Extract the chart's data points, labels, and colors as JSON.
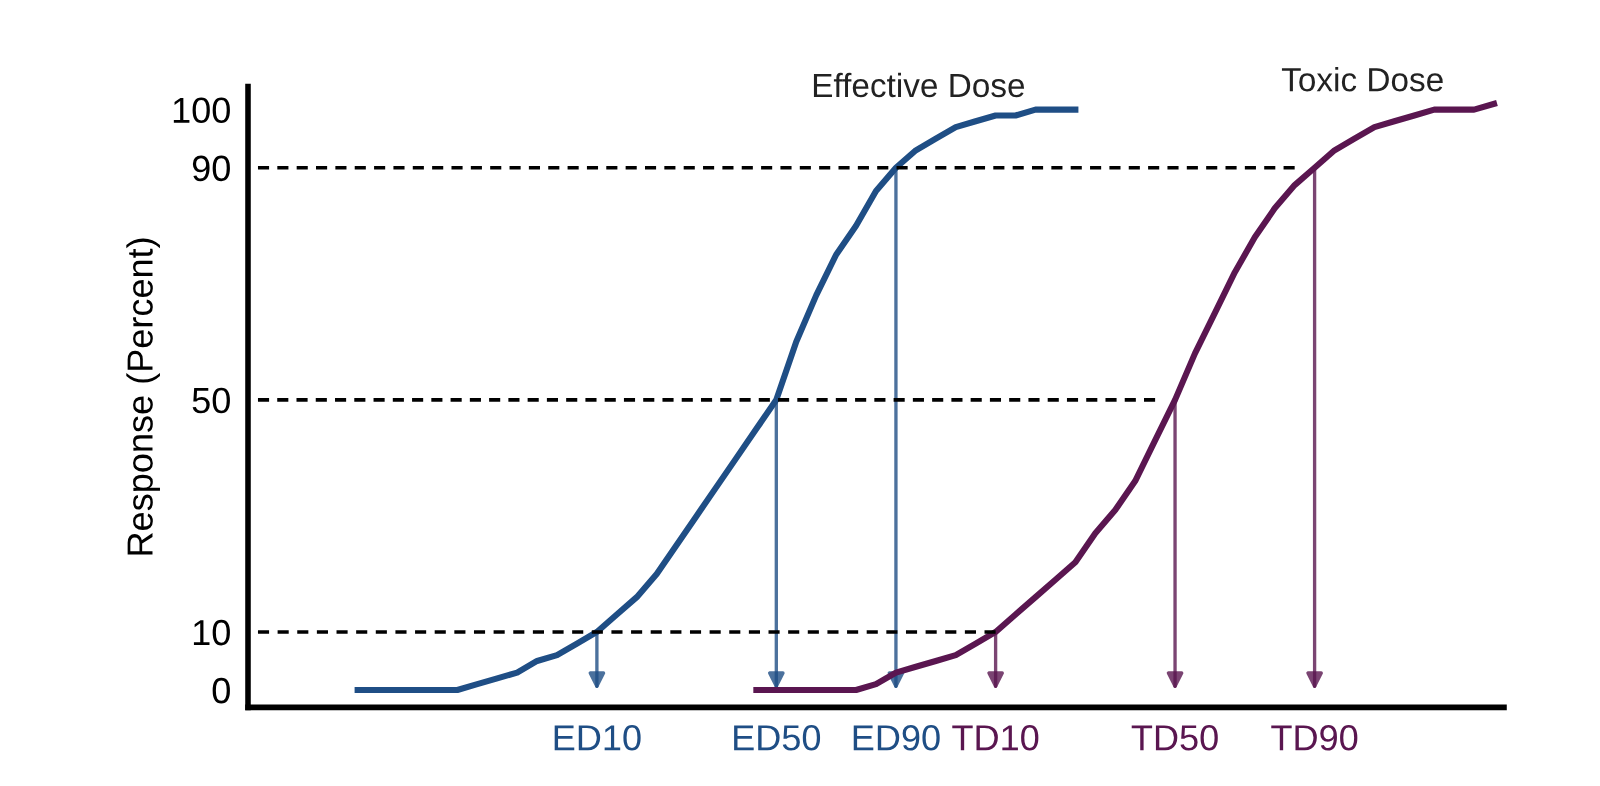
{
  "chart_data": {
    "type": "line",
    "ylabel": "Response (Percent)",
    "ylim": [
      -3,
      104
    ],
    "yticks": [
      0,
      10,
      50,
      90,
      100
    ],
    "categories": [
      null,
      null,
      null,
      null,
      null,
      null,
      null,
      null,
      null,
      null,
      null,
      null,
      null,
      null,
      null,
      null,
      null,
      "ED10",
      null,
      null,
      null,
      null,
      null,
      null,
      null,
      null,
      "ED50",
      null,
      null,
      null,
      null,
      null,
      "ED90",
      null,
      null,
      null,
      null,
      "TD10",
      null,
      null,
      null,
      null,
      null,
      null,
      null,
      null,
      "TD50",
      null,
      null,
      null,
      null,
      null,
      null,
      "TD90",
      null,
      null,
      null,
      null,
      null,
      null,
      null,
      null,
      null
    ],
    "grid": false,
    "legend": false,
    "line_style": "solid",
    "series": [
      {
        "name": "Effective Dose",
        "color": "#1f4e85",
        "values": [
          null,
          null,
          null,
          null,
          null,
          0,
          0,
          0,
          0,
          0,
          0,
          1,
          2,
          3,
          5,
          6,
          8,
          10,
          13,
          16,
          20,
          25,
          30,
          35,
          40,
          45,
          50,
          60,
          68,
          75,
          80,
          86,
          90,
          93,
          95,
          97,
          98,
          99,
          99,
          100,
          100,
          100,
          null,
          null,
          null,
          null,
          null,
          null,
          null,
          null,
          null,
          null,
          null,
          null,
          null,
          null,
          null,
          null,
          null,
          null,
          null,
          null,
          null
        ]
      },
      {
        "name": "Toxic Dose",
        "color": "#5a1650",
        "values": [
          null,
          null,
          null,
          null,
          null,
          null,
          null,
          null,
          null,
          null,
          null,
          null,
          null,
          null,
          null,
          null,
          null,
          null,
          null,
          null,
          null,
          null,
          null,
          null,
          null,
          0,
          0,
          0,
          0,
          0,
          0,
          1,
          3,
          4,
          5,
          6,
          8,
          10,
          13,
          16,
          19,
          22,
          27,
          31,
          36,
          43,
          50,
          58,
          65,
          72,
          78,
          83,
          87,
          90,
          93,
          95,
          97,
          98,
          99,
          100,
          100,
          100,
          101
        ]
      },
      {
        "color": "#000000",
        "line_style": "dashed",
        "values": [
          10,
          10,
          10,
          10,
          10,
          10,
          10,
          10,
          10,
          10,
          10,
          10,
          10,
          10,
          10,
          10,
          10,
          10,
          10,
          10,
          10,
          10,
          10,
          10,
          10,
          10,
          10,
          10,
          10,
          10,
          10,
          10,
          10,
          10,
          10,
          10,
          10,
          10,
          null,
          null,
          null,
          null,
          null,
          null,
          null,
          null,
          null,
          null,
          null,
          null,
          null,
          null,
          null,
          null,
          null,
          null,
          null,
          null,
          null,
          null,
          null,
          null,
          null
        ]
      },
      {
        "color": "#000000",
        "line_style": "dashed",
        "values": [
          50,
          50,
          50,
          50,
          50,
          50,
          50,
          50,
          50,
          50,
          50,
          50,
          50,
          50,
          50,
          50,
          50,
          50,
          50,
          50,
          50,
          50,
          50,
          50,
          50,
          50,
          50,
          50,
          50,
          50,
          50,
          50,
          50,
          50,
          50,
          50,
          50,
          50,
          50,
          50,
          50,
          50,
          50,
          50,
          50,
          50,
          null,
          null,
          null,
          null,
          null,
          null,
          null,
          null,
          null,
          null,
          null,
          null,
          null,
          null,
          null,
          null,
          null
        ]
      },
      {
        "color": "#000000",
        "line_style": "dashed",
        "values": [
          90,
          90,
          90,
          90,
          90,
          90,
          90,
          90,
          90,
          90,
          90,
          90,
          90,
          90,
          90,
          90,
          90,
          90,
          90,
          90,
          90,
          90,
          90,
          90,
          90,
          90,
          90,
          90,
          90,
          90,
          90,
          90,
          90,
          90,
          90,
          90,
          90,
          90,
          90,
          90,
          90,
          90,
          90,
          90,
          90,
          90,
          90,
          90,
          90,
          90,
          90,
          90,
          90,
          null,
          null,
          null,
          null,
          null,
          null,
          null,
          null,
          null,
          null
        ]
      }
    ]
  }
}
